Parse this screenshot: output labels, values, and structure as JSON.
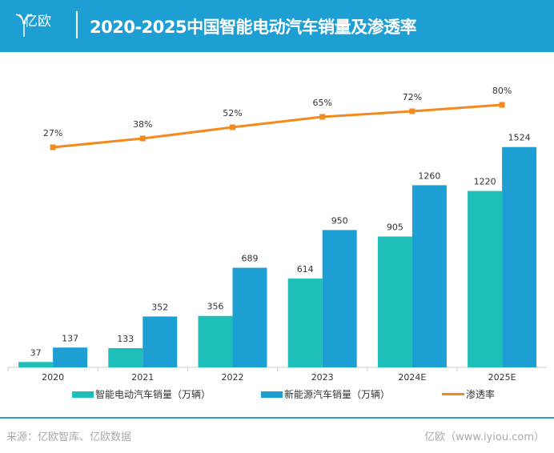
{
  "header": {
    "logo_text": "亿欧",
    "title": "2020-2025中国智能电动汽车销量及渗透率"
  },
  "colors": {
    "header": "#1e9fd4",
    "smart_ev": "#1dbfb8",
    "nev": "#1e9fd4",
    "penetration": "#f28a1d"
  },
  "chart_data": {
    "type": "bar+line",
    "categories": [
      "2020",
      "2021",
      "2022",
      "2023",
      "2024E",
      "2025E"
    ],
    "series": [
      {
        "name": "智能电动汽车销量（万辆）",
        "type": "bar",
        "values": [
          37,
          133,
          356,
          614,
          905,
          1220
        ]
      },
      {
        "name": "新能源汽车销量（万辆）",
        "type": "bar",
        "values": [
          137,
          352,
          689,
          950,
          1260,
          1524
        ]
      },
      {
        "name": "渗透率",
        "type": "line",
        "values": [
          27,
          38,
          52,
          65,
          72,
          80
        ],
        "labels": [
          "27%",
          "38%",
          "52%",
          "65%",
          "72%",
          "80%"
        ]
      }
    ],
    "bar_ylim": [
      0,
      1600
    ],
    "line_ylim": [
      0,
      100
    ],
    "grid": false,
    "legend": "bottom"
  },
  "footer": {
    "source": "来源：亿欧智库、亿欧数据",
    "site": "亿欧（www.iyiou.com）"
  }
}
